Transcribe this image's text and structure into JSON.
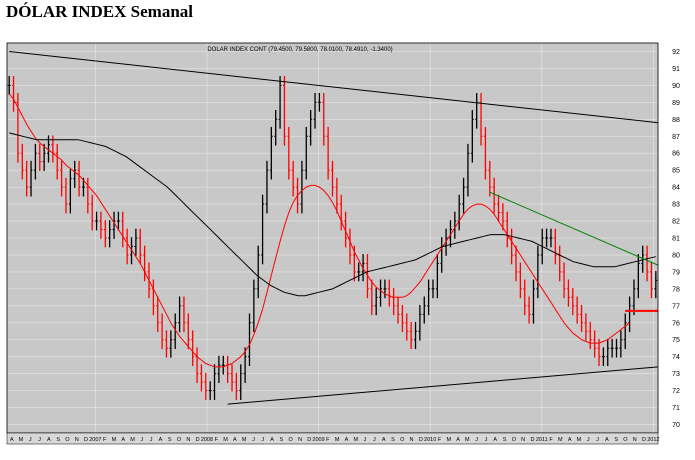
{
  "page": {
    "title": "DÓLAR INDEX Semanal"
  },
  "chart_data": {
    "type": "line",
    "title": "DOLAR INDEX CONT (79.4500, 79.5800, 78.0100, 78.4910, -1.3400)",
    "xlabel": "",
    "ylabel": "",
    "ylim": [
      69.5,
      92.5
    ],
    "yticks": [
      70,
      71,
      72,
      73,
      74,
      75,
      76,
      77,
      78,
      79,
      80,
      81,
      82,
      83,
      84,
      85,
      86,
      87,
      88,
      89,
      90,
      91,
      92
    ],
    "xticks": [
      "A",
      "M",
      "J",
      "J",
      "A",
      "S",
      "O",
      "N",
      "D",
      "2007",
      "F",
      "M",
      "A",
      "M",
      "J",
      "J",
      "A",
      "S",
      "O",
      "N",
      "D",
      "2008",
      "F",
      "M",
      "A",
      "M",
      "J",
      "J",
      "A",
      "S",
      "O",
      "N",
      "D",
      "2009",
      "F",
      "M",
      "A",
      "M",
      "J",
      "J",
      "A",
      "S",
      "O",
      "N",
      "D",
      "2010",
      "F",
      "M",
      "A",
      "M",
      "J",
      "J",
      "A",
      "S",
      "O",
      "N",
      "D",
      "2011",
      "F",
      "M",
      "A",
      "M",
      "J",
      "J",
      "A",
      "S",
      "O",
      "N",
      "D",
      "2012"
    ],
    "grid": true,
    "background": "#c8c8c8",
    "colors": {
      "price": "#000000",
      "down_bar": "#ff0000",
      "ma_short": "#ff0000",
      "ma_long": "#000000",
      "trend_top": "#000000",
      "trend_bottom": "#000000",
      "trend_recent": "#008000",
      "marker": "#ff0000"
    },
    "price": [
      90,
      89,
      86,
      85,
      84,
      85,
      86,
      85.5,
      86,
      86.5,
      86,
      85,
      84,
      83,
      84.5,
      85,
      84,
      84,
      83,
      82,
      82,
      81.5,
      81,
      81.5,
      82,
      82,
      81,
      80,
      80.5,
      81,
      80,
      79,
      78,
      77,
      76,
      75,
      74.5,
      75,
      76,
      77,
      76,
      75,
      74,
      73,
      72.5,
      72,
      72,
      73,
      73.5,
      73.5,
      73,
      72.5,
      72,
      73,
      74,
      76,
      78,
      80,
      83,
      85,
      87,
      88,
      90,
      87,
      85,
      84,
      83,
      85,
      87,
      88,
      89,
      89,
      87,
      85,
      84,
      83,
      82,
      81,
      80,
      79,
      79,
      79.5,
      78,
      77,
      77.5,
      78,
      78,
      77.5,
      77,
      76.5,
      76,
      75.5,
      75,
      75.5,
      76.5,
      77,
      78,
      78,
      79.5,
      80.5,
      81,
      81.5,
      82,
      83,
      84,
      86,
      88,
      89,
      87,
      85,
      84,
      83,
      82.5,
      82,
      81,
      80,
      79,
      78,
      77,
      76.5,
      78,
      80,
      81,
      81,
      81,
      80,
      79,
      78,
      77.5,
      77,
      76.5,
      76,
      75.5,
      75,
      74.5,
      74,
      74,
      74.5,
      74.5,
      74.5,
      75,
      76,
      77,
      78,
      79.5,
      80,
      79,
      78,
      78.5
    ],
    "ma_short": [
      89.5,
      89.2,
      88.7,
      88.2,
      87.7,
      87.3,
      86.9,
      86.6,
      86.4,
      86.2,
      86,
      85.8,
      85.6,
      85.3,
      85.1,
      84.9,
      84.7,
      84.4,
      84.1,
      83.8,
      83.5,
      83.1,
      82.7,
      82.3,
      81.9,
      81.5,
      81.1,
      80.7,
      80.3,
      79.9,
      79.5,
      79,
      78.5,
      78,
      77.5,
      77,
      76.5,
      76,
      75.6,
      75.2,
      74.9,
      74.6,
      74.3,
      74,
      73.8,
      73.6,
      73.5,
      73.4,
      73.4,
      73.4,
      73.5,
      73.6,
      73.8,
      74,
      74.3,
      74.7,
      75.3,
      76,
      76.8,
      77.8,
      78.8,
      79.8,
      80.8,
      81.7,
      82.5,
      83.1,
      83.5,
      83.8,
      84,
      84.1,
      84.1,
      84,
      83.8,
      83.5,
      83.1,
      82.6,
      82,
      81.4,
      80.8,
      80.2,
      79.7,
      79.2,
      78.8,
      78.4,
      78.1,
      77.9,
      77.7,
      77.6,
      77.5,
      77.5,
      77.5,
      77.6,
      77.8,
      78.1,
      78.4,
      78.8,
      79.2,
      79.6,
      80,
      80.4,
      80.8,
      81.2,
      81.6,
      82,
      82.4,
      82.7,
      82.9,
      83,
      83,
      82.9,
      82.7,
      82.4,
      82,
      81.6,
      81.2,
      80.8,
      80.4,
      80,
      79.6,
      79.2,
      78.8,
      78.4,
      78,
      77.6,
      77.2,
      76.8,
      76.4,
      76,
      75.7,
      75.4,
      75.2,
      75,
      74.9,
      74.8,
      74.8,
      74.8,
      74.9,
      75,
      75.2,
      75.4,
      75.6,
      75.8,
      76
    ],
    "ma_long": [
      87.2,
      87.1,
      87,
      86.9,
      86.8,
      86.8,
      86.8,
      86.8,
      86.8,
      86.8,
      86.8,
      86.7,
      86.6,
      86.5,
      86.4,
      86.2,
      86,
      85.8,
      85.5,
      85.2,
      84.9,
      84.6,
      84.3,
      84,
      83.6,
      83.2,
      82.8,
      82.4,
      82,
      81.6,
      81.2,
      80.8,
      80.4,
      80,
      79.6,
      79.2,
      78.8,
      78.5,
      78.2,
      78,
      77.8,
      77.7,
      77.6,
      77.6,
      77.7,
      77.8,
      77.9,
      78,
      78.2,
      78.4,
      78.6,
      78.8,
      79,
      79.1,
      79.2,
      79.3,
      79.4,
      79.5,
      79.6,
      79.7,
      79.9,
      80.1,
      80.3,
      80.5,
      80.6,
      80.7,
      80.8,
      80.9,
      81,
      81.1,
      81.2,
      81.2,
      81.2,
      81.1,
      81,
      80.9,
      80.8,
      80.6,
      80.4,
      80.2,
      80,
      79.8,
      79.6,
      79.5,
      79.4,
      79.3,
      79.3,
      79.3,
      79.3,
      79.4,
      79.5,
      79.6,
      79.7,
      79.8,
      79.9
    ],
    "trendlines": [
      {
        "name": "top",
        "x": [
          0,
          148
        ],
        "y": [
          92,
          87.8
        ]
      },
      {
        "name": "bottom",
        "x": [
          50,
          148
        ],
        "y": [
          71.2,
          73.4
        ]
      },
      {
        "name": "recent",
        "x": [
          110,
          148
        ],
        "y": [
          83.7,
          79.4
        ]
      }
    ],
    "marker": {
      "x": [
        141,
        148
      ],
      "y": 76.7
    }
  }
}
